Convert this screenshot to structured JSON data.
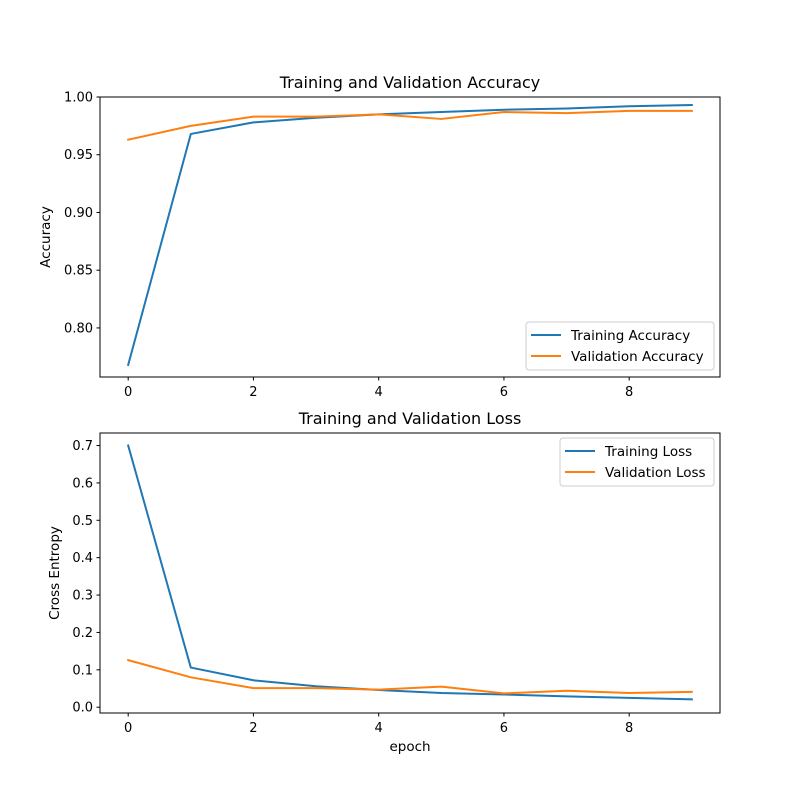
{
  "chart_data": [
    {
      "type": "line",
      "title": "Training and Validation Accuracy",
      "xlabel": "",
      "ylabel": "Accuracy",
      "xlim": [
        -0.45,
        9.45
      ],
      "ylim": [
        0.7575,
        1.0
      ],
      "xticks": [
        0,
        2,
        4,
        6,
        8
      ],
      "xtick_labels": [
        "0",
        "2",
        "4",
        "6",
        "8"
      ],
      "yticks": [
        0.8,
        0.85,
        0.9,
        0.95,
        1.0
      ],
      "ytick_labels": [
        "0.80",
        "0.85",
        "0.90",
        "0.95",
        "1.00"
      ],
      "legend_position": "lower-right",
      "grid": false,
      "x": [
        0,
        1,
        2,
        3,
        4,
        5,
        6,
        7,
        8,
        9
      ],
      "series": [
        {
          "name": "Training Accuracy",
          "color": "#1f77b4",
          "values": [
            0.768,
            0.968,
            0.978,
            0.982,
            0.985,
            0.987,
            0.989,
            0.99,
            0.992,
            0.993
          ]
        },
        {
          "name": "Validation Accuracy",
          "color": "#ff7f0e",
          "values": [
            0.963,
            0.975,
            0.983,
            0.983,
            0.985,
            0.981,
            0.987,
            0.986,
            0.988,
            0.988
          ]
        }
      ]
    },
    {
      "type": "line",
      "title": "Training and Validation Loss",
      "xlabel": "epoch",
      "ylabel": "Cross Entropy",
      "xlim": [
        -0.45,
        9.45
      ],
      "ylim": [
        -0.0155,
        0.7335
      ],
      "xticks": [
        0,
        2,
        4,
        6,
        8
      ],
      "xtick_labels": [
        "0",
        "2",
        "4",
        "6",
        "8"
      ],
      "yticks": [
        0.0,
        0.1,
        0.2,
        0.3,
        0.4,
        0.5,
        0.6,
        0.7
      ],
      "ytick_labels": [
        "0.0",
        "0.1",
        "0.2",
        "0.3",
        "0.4",
        "0.5",
        "0.6",
        "0.7"
      ],
      "legend_position": "upper-right",
      "grid": false,
      "x": [
        0,
        1,
        2,
        3,
        4,
        5,
        6,
        7,
        8,
        9
      ],
      "series": [
        {
          "name": "Training Loss",
          "color": "#1f77b4",
          "values": [
            0.7,
            0.106,
            0.072,
            0.056,
            0.046,
            0.038,
            0.034,
            0.029,
            0.025,
            0.021
          ]
        },
        {
          "name": "Validation Loss",
          "color": "#ff7f0e",
          "values": [
            0.126,
            0.08,
            0.051,
            0.051,
            0.047,
            0.055,
            0.037,
            0.044,
            0.038,
            0.041
          ]
        }
      ]
    }
  ]
}
